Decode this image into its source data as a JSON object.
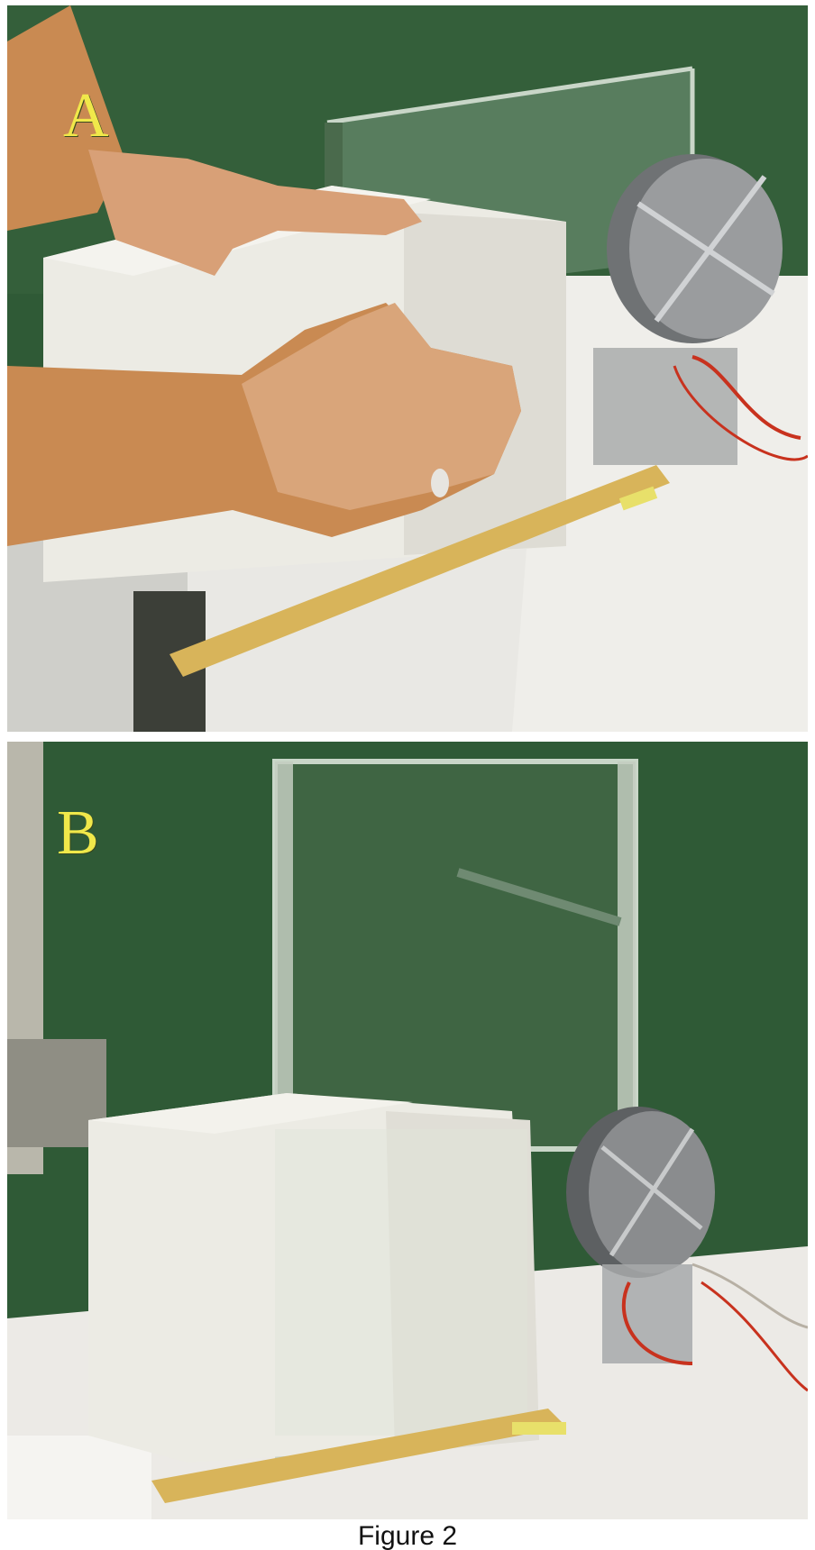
{
  "panels": [
    {
      "label": "A"
    },
    {
      "label": "B"
    }
  ],
  "caption": "Figure 2",
  "colors": {
    "background_green": "#2f5a36",
    "foam_block": "#ecebe4",
    "table_top": "#e9e8e4",
    "ruler_wood": "#d8b45a",
    "pulley_grey": "#8a8c8e",
    "wire_red": "#c8321e",
    "label_yellow": "#f0e84a"
  }
}
